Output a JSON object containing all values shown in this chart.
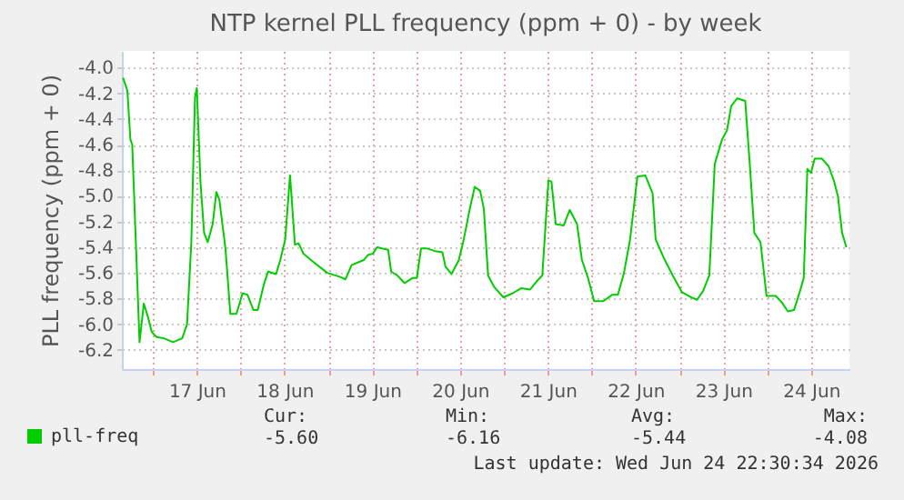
{
  "chart_data": {
    "type": "line",
    "title": "NTP kernel PLL frequency (ppm + 0) - by week",
    "ylabel": "PLL frequency (ppm + 0)",
    "xlim": [
      "2026-06-16T15:30",
      "2026-06-24T22:30"
    ],
    "xticks": [
      {
        "value": "2026-06-17T00:00",
        "label": null
      },
      {
        "value": "2026-06-17T12:00",
        "label": "17 Jun"
      },
      {
        "value": "2026-06-18T00:00",
        "label": null
      },
      {
        "value": "2026-06-18T12:00",
        "label": "18 Jun"
      },
      {
        "value": "2026-06-19T00:00",
        "label": null
      },
      {
        "value": "2026-06-19T12:00",
        "label": "19 Jun"
      },
      {
        "value": "2026-06-20T00:00",
        "label": null
      },
      {
        "value": "2026-06-20T12:00",
        "label": "20 Jun"
      },
      {
        "value": "2026-06-21T00:00",
        "label": null
      },
      {
        "value": "2026-06-21T12:00",
        "label": "21 Jun"
      },
      {
        "value": "2026-06-22T00:00",
        "label": null
      },
      {
        "value": "2026-06-22T12:00",
        "label": "22 Jun"
      },
      {
        "value": "2026-06-23T00:00",
        "label": null
      },
      {
        "value": "2026-06-23T12:00",
        "label": "23 Jun"
      },
      {
        "value": "2026-06-24T00:00",
        "label": null
      },
      {
        "value": "2026-06-24T12:00",
        "label": "24 Jun"
      }
    ],
    "ylim": [
      -6.35,
      -3.87
    ],
    "yticks": [
      -6.2,
      {
        "value": -6,
        "label": "-6.0"
      },
      -5.8,
      -5.6,
      -5.4,
      -5.2,
      {
        "value": -5,
        "label": "-5.0"
      },
      -4.8,
      -4.6,
      -4.4,
      -4.2,
      {
        "value": -4,
        "label": "-4.0"
      }
    ],
    "grid": true,
    "legend": "bottom",
    "x": [
      "2026-06-16T15:50",
      "2026-06-16T17:00",
      "2026-06-16T17:50",
      "2026-06-16T18:20",
      "2026-06-16T20:20",
      "2026-06-16T21:30",
      "2026-06-16T22:30",
      "2026-06-16T23:40",
      "2026-06-17T01:00",
      "2026-06-17T03:00",
      "2026-06-17T05:30",
      "2026-06-17T08:00",
      "2026-06-17T09:20",
      "2026-06-17T10:30",
      "2026-06-17T11:30",
      "2026-06-17T12:00",
      "2026-06-17T13:00",
      "2026-06-17T14:00",
      "2026-06-17T15:00",
      "2026-06-17T16:20",
      "2026-06-17T17:20",
      "2026-06-17T18:10",
      "2026-06-17T19:50",
      "2026-06-17T21:10",
      "2026-06-17T22:50",
      "2026-06-18T00:30",
      "2026-06-18T01:50",
      "2026-06-18T03:30",
      "2026-06-18T04:40",
      "2026-06-18T06:20",
      "2026-06-18T07:30",
      "2026-06-18T09:40",
      "2026-06-18T10:50",
      "2026-06-18T12:10",
      "2026-06-18T13:30",
      "2026-06-18T14:50",
      "2026-06-18T15:50",
      "2026-06-18T17:10",
      "2026-06-18T19:40",
      "2026-06-18T23:40",
      "2026-06-19T03:00",
      "2026-06-19T04:40",
      "2026-06-19T06:20",
      "2026-06-19T09:40",
      "2026-06-19T10:50",
      "2026-06-19T12:10",
      "2026-06-19T13:20",
      "2026-06-19T14:40",
      "2026-06-19T16:20",
      "2026-06-19T17:10",
      "2026-06-19T18:50",
      "2026-06-19T20:50",
      "2026-06-19T23:00",
      "2026-06-20T00:10",
      "2026-06-20T01:20",
      "2026-06-20T03:00",
      "2026-06-20T05:10",
      "2026-06-20T07:10",
      "2026-06-20T08:00",
      "2026-06-20T09:40",
      "2026-06-20T11:40",
      "2026-06-20T13:00",
      "2026-06-20T14:40",
      "2026-06-20T16:00",
      "2026-06-20T17:30",
      "2026-06-20T18:30",
      "2026-06-20T19:40",
      "2026-06-20T21:20",
      "2026-06-20T23:50",
      "2026-06-21T02:20",
      "2026-06-21T04:40",
      "2026-06-21T07:10",
      "2026-06-21T08:50",
      "2026-06-21T10:30",
      "2026-06-21T12:10",
      "2026-06-21T13:00",
      "2026-06-21T14:10",
      "2026-06-21T16:20",
      "2026-06-21T18:00",
      "2026-06-21T20:00",
      "2026-06-21T21:20",
      "2026-06-21T23:00",
      "2026-06-22T00:40",
      "2026-06-22T03:10",
      "2026-06-22T05:40",
      "2026-06-22T07:10",
      "2026-06-22T08:50",
      "2026-06-22T10:30",
      "2026-06-22T12:30",
      "2026-06-22T14:40",
      "2026-06-22T16:40",
      "2026-06-22T17:30",
      "2026-06-22T19:40",
      "2026-06-22T22:10",
      "2026-06-23T00:40",
      "2026-06-23T03:10",
      "2026-06-23T04:50",
      "2026-06-23T06:30",
      "2026-06-23T08:10",
      "2026-06-23T09:40",
      "2026-06-23T11:40",
      "2026-06-23T13:00",
      "2026-06-23T14:10",
      "2026-06-23T15:50",
      "2026-06-23T18:00",
      "2026-06-23T19:20",
      "2026-06-23T20:30",
      "2026-06-23T22:10",
      "2026-06-23T23:50",
      "2026-06-24T02:20",
      "2026-06-24T04:00",
      "2026-06-24T05:40",
      "2026-06-24T07:20",
      "2026-06-24T09:00",
      "2026-06-24T10:00",
      "2026-06-24T11:00",
      "2026-06-24T12:00",
      "2026-06-24T13:00",
      "2026-06-24T15:00",
      "2026-06-24T16:50",
      "2026-06-24T18:20",
      "2026-06-24T19:20",
      "2026-06-24T20:30",
      "2026-06-24T21:40"
    ],
    "series": [
      {
        "name": "pll-freq",
        "color": "#00cc00",
        "values": [
          -4.08,
          -4.18,
          -4.56,
          -4.6,
          -6.14,
          -5.84,
          -5.93,
          -6.06,
          -6.1,
          -6.11,
          -6.14,
          -6.11,
          -6.0,
          -5.36,
          -4.23,
          -4.16,
          -4.89,
          -5.29,
          -5.36,
          -5.22,
          -4.97,
          -5.03,
          -5.41,
          -5.92,
          -5.92,
          -5.76,
          -5.77,
          -5.89,
          -5.89,
          -5.69,
          -5.59,
          -5.61,
          -5.5,
          -5.34,
          -4.84,
          -5.38,
          -5.37,
          -5.45,
          -5.51,
          -5.6,
          -5.63,
          -5.65,
          -5.54,
          -5.5,
          -5.46,
          -5.45,
          -5.4,
          -5.41,
          -5.42,
          -5.59,
          -5.62,
          -5.68,
          -5.64,
          -5.64,
          -5.41,
          -5.41,
          -5.43,
          -5.44,
          -5.55,
          -5.61,
          -5.5,
          -5.34,
          -5.1,
          -4.93,
          -4.96,
          -5.1,
          -5.62,
          -5.71,
          -5.79,
          -5.76,
          -5.72,
          -5.73,
          -5.67,
          -5.62,
          -4.88,
          -4.89,
          -5.22,
          -5.23,
          -5.11,
          -5.22,
          -5.5,
          -5.64,
          -5.82,
          -5.82,
          -5.77,
          -5.77,
          -5.6,
          -5.34,
          -4.85,
          -4.84,
          -4.98,
          -5.34,
          -5.48,
          -5.62,
          -5.75,
          -5.79,
          -5.81,
          -5.74,
          -5.62,
          -4.75,
          -4.56,
          -4.49,
          -4.3,
          -4.24,
          -4.26,
          -4.79,
          -5.29,
          -5.36,
          -5.78,
          -5.78,
          -5.83,
          -5.9,
          -5.89,
          -5.74,
          -5.64,
          -4.79,
          -4.82,
          -4.71,
          -4.71,
          -4.77,
          -4.89,
          -5.0,
          -5.29,
          -5.4
        ]
      }
    ],
    "annotations": [
      "Cur:\n-5.60",
      "Min:\n-6.16",
      "Avg:\n-5.44",
      "Max:\n-4.08",
      "Last update: Wed Jun 24 22:30:34 2026"
    ]
  }
}
